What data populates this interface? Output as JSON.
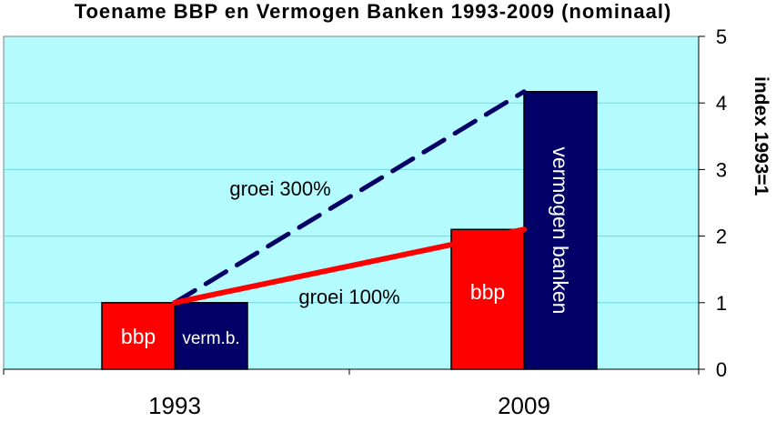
{
  "chart_data": {
    "type": "bar",
    "title": "Toename BBP en Vermogen Banken 1993-2009 (nominaal)",
    "ylabel": "index 1993=1",
    "xlabel": "",
    "ylim": [
      0,
      5
    ],
    "yticks": [
      "0",
      "1",
      "2",
      "3",
      "4",
      "5"
    ],
    "categories": [
      "1993",
      "2009"
    ],
    "series": [
      {
        "name": "bbp",
        "color": "#ff0000",
        "values": [
          1.0,
          2.1
        ],
        "bar_labels": [
          "bbp",
          "bbp"
        ]
      },
      {
        "name": "vermogen banken",
        "color": "#000066",
        "values": [
          1.0,
          4.17
        ],
        "bar_labels": [
          "verm.b.",
          "vermogen banken"
        ]
      }
    ],
    "annotations": [
      {
        "text": "groei 300%",
        "line_color": "#000066",
        "line_style": "dashed",
        "from": [
          1993,
          1.0
        ],
        "to": [
          2009,
          4.17
        ]
      },
      {
        "text": "groei 100%",
        "line_color": "#ff0000",
        "line_style": "solid",
        "from": [
          1993,
          1.0
        ],
        "to": [
          2009,
          2.1
        ]
      }
    ],
    "plot_background": "#b3fbff",
    "grid": true,
    "legend": "none"
  }
}
